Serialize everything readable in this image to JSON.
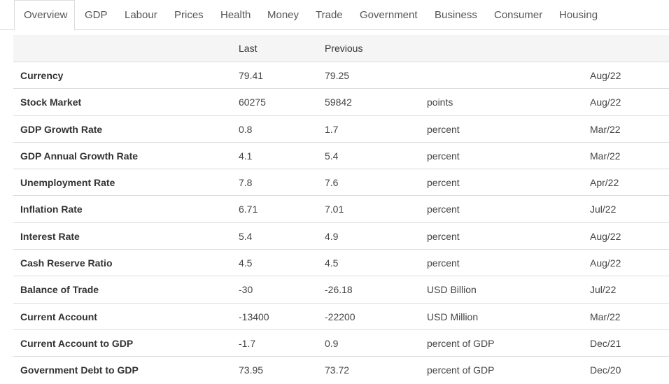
{
  "tabs": [
    {
      "label": "Overview",
      "active": true
    },
    {
      "label": "GDP"
    },
    {
      "label": "Labour"
    },
    {
      "label": "Prices"
    },
    {
      "label": "Health"
    },
    {
      "label": "Money"
    },
    {
      "label": "Trade"
    },
    {
      "label": "Government"
    },
    {
      "label": "Business"
    },
    {
      "label": "Consumer"
    },
    {
      "label": "Housing"
    }
  ],
  "table": {
    "headers": {
      "name": "",
      "last": "Last",
      "previous": "Previous",
      "unit": "",
      "date": ""
    },
    "rows": [
      {
        "name": "Currency",
        "last": "79.41",
        "previous": "79.25",
        "unit": "",
        "date": "Aug/22"
      },
      {
        "name": "Stock Market",
        "last": "60275",
        "previous": "59842",
        "unit": "points",
        "date": "Aug/22"
      },
      {
        "name": "GDP Growth Rate",
        "last": "0.8",
        "previous": "1.7",
        "unit": "percent",
        "date": "Mar/22"
      },
      {
        "name": "GDP Annual Growth Rate",
        "last": "4.1",
        "previous": "5.4",
        "unit": "percent",
        "date": "Mar/22"
      },
      {
        "name": "Unemployment Rate",
        "last": "7.8",
        "previous": "7.6",
        "unit": "percent",
        "date": "Apr/22"
      },
      {
        "name": "Inflation Rate",
        "last": "6.71",
        "previous": "7.01",
        "unit": "percent",
        "date": "Jul/22"
      },
      {
        "name": "Interest Rate",
        "last": "5.4",
        "previous": "4.9",
        "unit": "percent",
        "date": "Aug/22"
      },
      {
        "name": "Cash Reserve Ratio",
        "last": "4.5",
        "previous": "4.5",
        "unit": "percent",
        "date": "Aug/22"
      },
      {
        "name": "Balance of Trade",
        "last": "-30",
        "previous": "-26.18",
        "unit": "USD Billion",
        "date": "Jul/22"
      },
      {
        "name": "Current Account",
        "last": "-13400",
        "previous": "-22200",
        "unit": "USD Million",
        "date": "Mar/22"
      },
      {
        "name": "Current Account to GDP",
        "last": "-1.7",
        "previous": "0.9",
        "unit": "percent of GDP",
        "date": "Dec/21"
      },
      {
        "name": "Government Debt to GDP",
        "last": "73.95",
        "previous": "73.72",
        "unit": "percent of GDP",
        "date": "Dec/20"
      }
    ]
  }
}
